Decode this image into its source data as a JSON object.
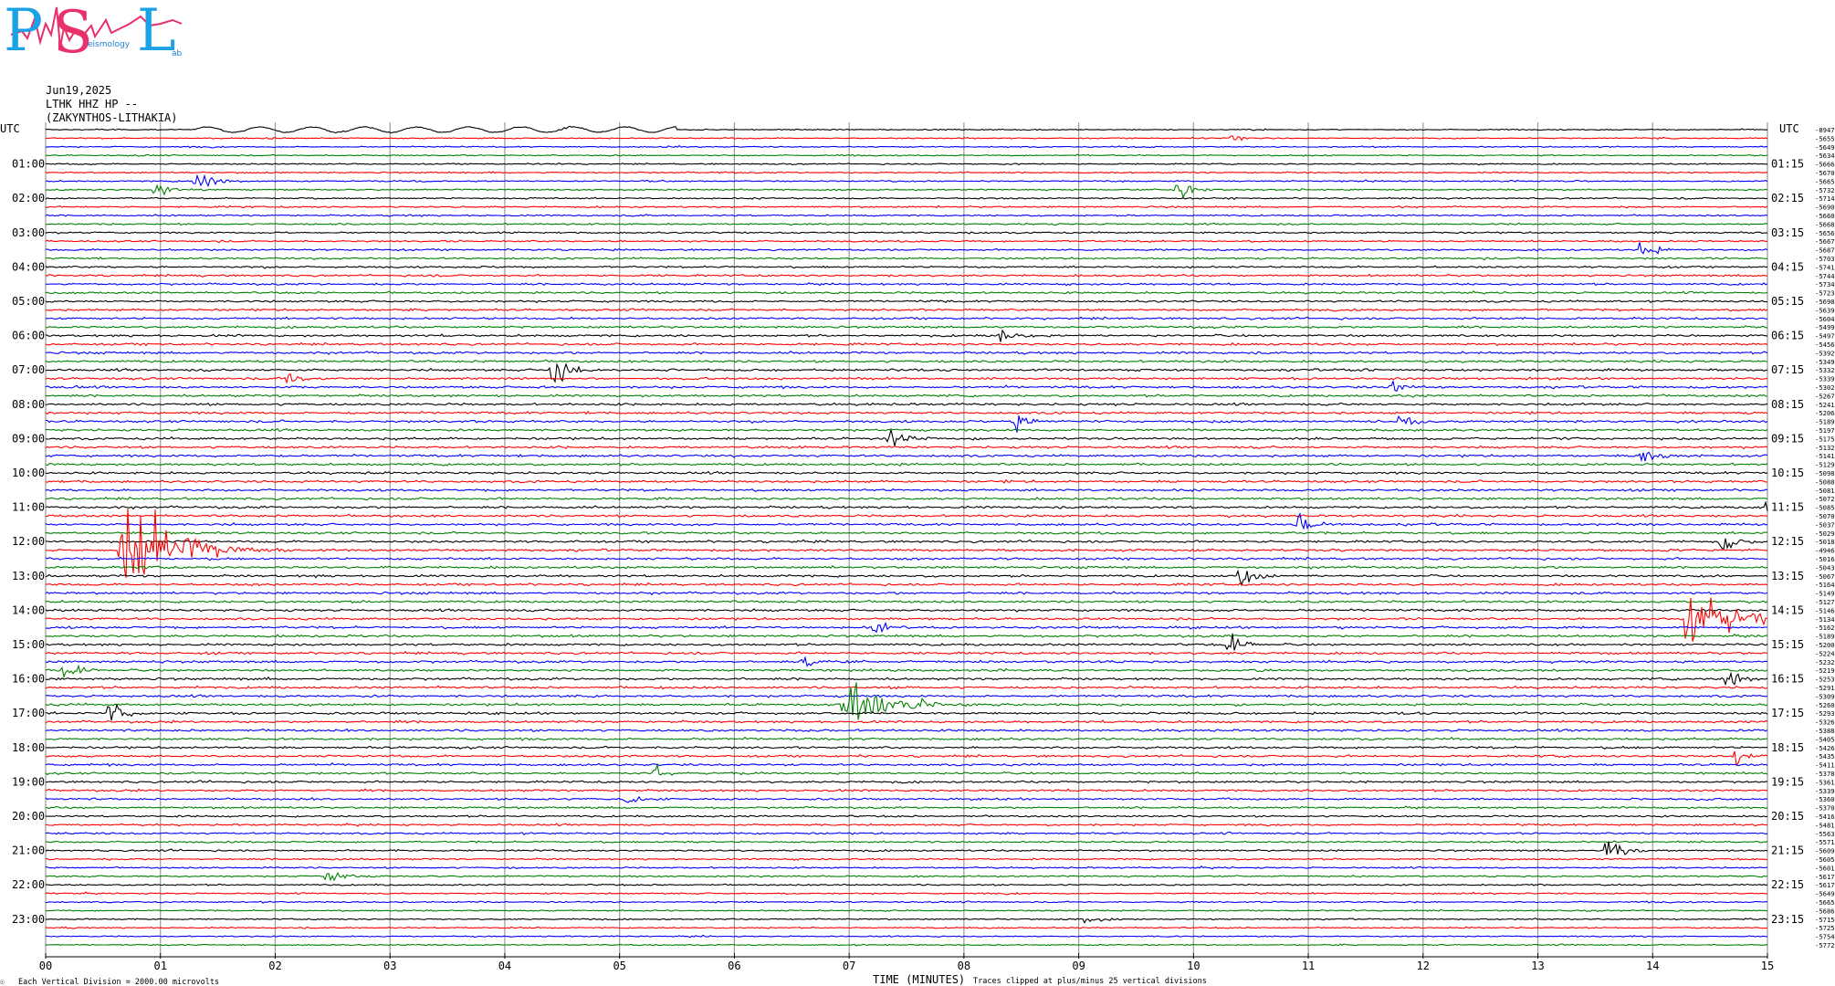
{
  "logo": {
    "letter_p": "P",
    "letter_s": "S",
    "letter_l": "L",
    "word_seismology": "eismology",
    "word_lab": "ab",
    "colors": {
      "p": "#19a3e6",
      "s": "#e8306a",
      "l": "#19a3e6",
      "wave": "#e8306a"
    }
  },
  "header": {
    "date": "Jun19,2025",
    "channel": "LTHK HHZ HP --",
    "station": "(ZAKYNTHOS-LITHAKIA)"
  },
  "chart_data": {
    "type": "line",
    "title": "",
    "left_axis_label": "UTC",
    "right_axis_label": "UTC",
    "hour_labels_left": [
      "01:00",
      "02:00",
      "03:00",
      "04:00",
      "05:00",
      "06:00",
      "07:00",
      "08:00",
      "09:00",
      "10:00",
      "11:00",
      "12:00",
      "13:00",
      "14:00",
      "15:00",
      "16:00",
      "17:00",
      "18:00",
      "19:00",
      "20:00",
      "21:00",
      "22:00",
      "23:00"
    ],
    "hour_labels_right": [
      "01:15",
      "02:15",
      "03:15",
      "04:15",
      "05:15",
      "06:15",
      "07:15",
      "08:15",
      "09:15",
      "10:15",
      "11:15",
      "12:15",
      "13:15",
      "14:15",
      "15:15",
      "16:15",
      "17:15",
      "18:15",
      "19:15",
      "20:15",
      "21:15",
      "22:15",
      "23:15"
    ],
    "x_ticks": [
      "00",
      "01",
      "02",
      "03",
      "04",
      "05",
      "06",
      "07",
      "08",
      "09",
      "10",
      "11",
      "12",
      "13",
      "14",
      "15"
    ],
    "xlabel": "TIME (MINUTES)",
    "xlim": [
      0,
      15
    ],
    "trace_count": 96,
    "trace_minutes_each": 15,
    "trace_color_cycle": [
      "#000000",
      "#ff0000",
      "#0000ff",
      "#008000"
    ],
    "trace_offsets": [
      "-8947",
      "-5655",
      "-5649",
      "-5634",
      "-5666",
      "-5670",
      "-5665",
      "-5732",
      "-5714",
      "-5690",
      "-5660",
      "-5668",
      "-5656",
      "-5667",
      "-5687",
      "-5703",
      "-5741",
      "-5744",
      "-5734",
      "-5723",
      "-5698",
      "-5639",
      "-5604",
      "-5499",
      "-5497",
      "-5456",
      "-5392",
      "-5349",
      "-5332",
      "-5339",
      "-5302",
      "-5267",
      "-5241",
      "-5206",
      "-5189",
      "-5197",
      "-5175",
      "-5132",
      "-5141",
      "-5129",
      "-5098",
      "-5088",
      "-5081",
      "-5072",
      "-5085",
      "-5070",
      "-5037",
      "-5029",
      "-5018",
      "-4946",
      "-5016",
      "-5043",
      "-5067",
      "-5164",
      "-5149",
      "-5127",
      "-5146",
      "-5134",
      "-5162",
      "-5189",
      "-5200",
      "-5224",
      "-5232",
      "-5219",
      "-5253",
      "-5291",
      "-5309",
      "-5260",
      "-5293",
      "-5326",
      "-5388",
      "-5405",
      "-5426",
      "-5435",
      "-5411",
      "-5378",
      "-5361",
      "-5339",
      "-5360",
      "-5370",
      "-5416",
      "-5481",
      "-5563",
      "-5571",
      "-5609",
      "-5605",
      "-5601",
      "-5617",
      "-5617",
      "-5649",
      "-5665",
      "-5686",
      "-5715",
      "-5725",
      "-5754",
      "-5772"
    ],
    "events": [
      {
        "trace": 0,
        "minute": 2.2,
        "kind": "microseism",
        "amplitude": 0.7
      },
      {
        "trace": 1,
        "minute": 10.3,
        "kind": "burst",
        "amplitude": 0.4
      },
      {
        "trace": 6,
        "minute": 1.3,
        "kind": "burst",
        "amplitude": 1.4
      },
      {
        "trace": 7,
        "minute": 0.95,
        "kind": "burst",
        "amplitude": 1.2
      },
      {
        "trace": 7,
        "minute": 9.85,
        "kind": "burst",
        "amplitude": 1.1
      },
      {
        "trace": 14,
        "minute": 13.9,
        "kind": "burst",
        "amplitude": 1.0
      },
      {
        "trace": 24,
        "minute": 8.3,
        "kind": "burst",
        "amplitude": 1.0
      },
      {
        "trace": 28,
        "minute": 4.4,
        "kind": "burst",
        "amplitude": 2.5
      },
      {
        "trace": 29,
        "minute": 2.1,
        "kind": "burst",
        "amplitude": 0.9
      },
      {
        "trace": 30,
        "minute": 11.7,
        "kind": "burst",
        "amplitude": 0.9
      },
      {
        "trace": 34,
        "minute": 8.45,
        "kind": "burst",
        "amplitude": 1.0
      },
      {
        "trace": 34,
        "minute": 11.8,
        "kind": "burst",
        "amplitude": 1.3
      },
      {
        "trace": 36,
        "minute": 7.35,
        "kind": "burst",
        "amplitude": 1.3
      },
      {
        "trace": 38,
        "minute": 13.9,
        "kind": "burst",
        "amplitude": 1.0
      },
      {
        "trace": 44,
        "minute": 15.0,
        "kind": "burst",
        "amplitude": 1.3
      },
      {
        "trace": 46,
        "minute": 10.9,
        "kind": "burst",
        "amplitude": 1.2
      },
      {
        "trace": 48,
        "minute": 14.6,
        "kind": "burst",
        "amplitude": 1.0
      },
      {
        "trace": 49,
        "minute": 0.65,
        "kind": "quake",
        "amplitude": 7.0
      },
      {
        "trace": 52,
        "minute": 10.4,
        "kind": "burst",
        "amplitude": 1.2
      },
      {
        "trace": 57,
        "minute": 14.3,
        "kind": "quake",
        "amplitude": 3.5
      },
      {
        "trace": 58,
        "minute": 7.2,
        "kind": "burst",
        "amplitude": 1.0
      },
      {
        "trace": 60,
        "minute": 10.3,
        "kind": "burst",
        "amplitude": 1.1
      },
      {
        "trace": 62,
        "minute": 6.6,
        "kind": "burst",
        "amplitude": 1.0
      },
      {
        "trace": 63,
        "minute": 0.15,
        "kind": "burst",
        "amplitude": 1.0
      },
      {
        "trace": 64,
        "minute": 14.65,
        "kind": "burst",
        "amplitude": 1.0
      },
      {
        "trace": 67,
        "minute": 6.95,
        "kind": "quake",
        "amplitude": 2.8
      },
      {
        "trace": 68,
        "minute": 0.55,
        "kind": "burst",
        "amplitude": 1.8
      },
      {
        "trace": 73,
        "minute": 14.7,
        "kind": "burst",
        "amplitude": 0.8
      },
      {
        "trace": 75,
        "minute": 5.3,
        "kind": "burst",
        "amplitude": 0.9
      },
      {
        "trace": 78,
        "minute": 5.05,
        "kind": "burst",
        "amplitude": 0.8
      },
      {
        "trace": 84,
        "minute": 13.6,
        "kind": "burst",
        "amplitude": 1.8
      },
      {
        "trace": 87,
        "minute": 2.45,
        "kind": "burst",
        "amplitude": 1.0
      },
      {
        "trace": 92,
        "minute": 9.05,
        "kind": "burst",
        "amplitude": 0.7
      }
    ],
    "grid": true
  },
  "footer": {
    "left_mark": "☉",
    "vertical_division": "Each Vertical Division = 2000.00 microvolts",
    "clipping": "Traces clipped at plus/minus 25 vertical divisions"
  }
}
